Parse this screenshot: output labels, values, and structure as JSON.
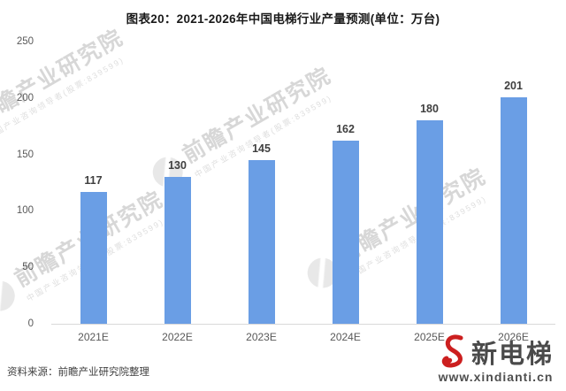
{
  "title": "图表20：2021-2026年中国电梯行业产量预测(单位：万台)",
  "chart_data": {
    "type": "bar",
    "categories": [
      "2021E",
      "2022E",
      "2023E",
      "2024E",
      "2025E",
      "2026E"
    ],
    "values": [
      117,
      130,
      145,
      162,
      180,
      201
    ],
    "title": "图表20：2021-2026年中国电梯行业产量预测(单位：万台)",
    "xlabel": "",
    "ylabel": "",
    "ylim": [
      0,
      250
    ],
    "yticks": [
      0,
      50,
      100,
      150,
      200,
      250
    ],
    "bar_color": "#6A9EE5",
    "grid": false,
    "legend": "none"
  },
  "watermark": {
    "brand": "前瞻产业研究院",
    "subtext": "中国产业咨询领导者(股票:839599)"
  },
  "footer": {
    "source": "资料来源：前瞻产业研究院整理"
  },
  "logo": {
    "name": "新电梯",
    "url": "www.xindianti.cn",
    "accent_color": "#cc1f1f"
  }
}
